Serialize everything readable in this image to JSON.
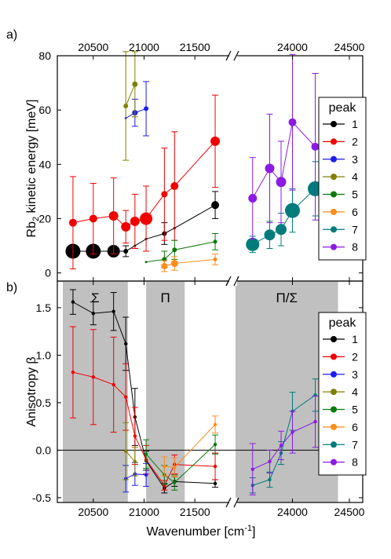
{
  "panels": {
    "a": {
      "letter": "a)"
    },
    "b": {
      "letter": "b)"
    }
  },
  "shared": {
    "xlabel": "Wavenumber [cm",
    "xlabel_sup": "-1",
    "xlabel_end": "]",
    "x_ticks_left": [
      20500,
      21000,
      21500
    ],
    "x_ticks_right": [
      24000,
      24500
    ],
    "x_break": "//",
    "axis_colors": {
      "axis": "#000000",
      "shade": "#c0c0c0"
    }
  },
  "legend": {
    "title": "peak",
    "entries": [
      "1",
      "2",
      "3",
      "4",
      "5",
      "6",
      "7",
      "8"
    ]
  },
  "series_colors": {
    "1": "#000000",
    "2": "#f20000",
    "3": "#1c1cf2",
    "4": "#808000",
    "5": "#0a7a0a",
    "6": "#ff8c1a",
    "7": "#007b7b",
    "8": "#8b1ae6"
  },
  "chart_data": [
    {
      "type": "scatter",
      "panel": "a",
      "ylabel": "Rb2 kinetic energy [meV]",
      "ylabel_main": "Rb",
      "ylabel_sub": "2",
      "ylabel_rest": " kinetic energy [meV]",
      "xlim_left": [
        20200,
        21800
      ],
      "xlim_right": [
        23500,
        24500
      ],
      "ylim": [
        -3,
        80
      ],
      "y_ticks": [
        0,
        20,
        40,
        60,
        80
      ],
      "series": [
        {
          "name": "1",
          "points": [
            {
              "x": 20300,
              "y": 8,
              "err": 1.5,
              "r": 9.5
            },
            {
              "x": 20500,
              "y": 8,
              "err": 1.5,
              "r": 9.5
            },
            {
              "x": 20700,
              "y": 8,
              "err": 2,
              "r": 8
            },
            {
              "x": 20820,
              "y": 8,
              "err": 2,
              "r": 3
            },
            {
              "x": 20910,
              "y": 10,
              "err": 0,
              "r": 1.5
            },
            {
              "x": 21020,
              "y": 12.5,
              "err": 0,
              "r": 1.5
            },
            {
              "x": 21200,
              "y": 14.5,
              "err": 4,
              "r": 3
            },
            {
              "x": 21300,
              "y": 16.5,
              "err": 0,
              "r": 1.5
            },
            {
              "x": 21700,
              "y": 25,
              "err": 5,
              "r": 5
            }
          ]
        },
        {
          "name": "2",
          "points": [
            {
              "x": 20300,
              "y": 18.5,
              "err": 17,
              "r": 5
            },
            {
              "x": 20500,
              "y": 20,
              "err": 13,
              "r": 5
            },
            {
              "x": 20700,
              "y": 21,
              "err": 14,
              "r": 6
            },
            {
              "x": 20820,
              "y": 17,
              "err": 6,
              "r": 6
            },
            {
              "x": 20910,
              "y": 19,
              "err": 10,
              "r": 6
            },
            {
              "x": 21020,
              "y": 20,
              "err": 12,
              "r": 8
            },
            {
              "x": 21200,
              "y": 29,
              "err": 17,
              "r": 4
            },
            {
              "x": 21300,
              "y": 32,
              "err": 20,
              "r": 5
            },
            {
              "x": 21700,
              "y": 48.5,
              "err": 17,
              "r": 6
            }
          ]
        },
        {
          "name": "3",
          "points": [
            {
              "x": 20820,
              "y": 57,
              "err": 0,
              "r": 1.5
            },
            {
              "x": 20910,
              "y": 59,
              "err": 5,
              "r": 3.5
            },
            {
              "x": 21020,
              "y": 60.5,
              "err": 10,
              "r": 3
            }
          ]
        },
        {
          "name": "4",
          "points": [
            {
              "x": 20820,
              "y": 61.5,
              "err": 20,
              "r": 3
            },
            {
              "x": 20910,
              "y": 69.5,
              "err": 12,
              "r": 3.5
            }
          ]
        },
        {
          "name": "5",
          "points": [
            {
              "x": 21020,
              "y": 4,
              "err": 0,
              "r": 1.5
            },
            {
              "x": 21200,
              "y": 5,
              "err": 3,
              "r": 3
            },
            {
              "x": 21300,
              "y": 8.5,
              "err": 3.5,
              "r": 3
            },
            {
              "x": 21700,
              "y": 11.5,
              "err": 3,
              "r": 2.5
            }
          ]
        },
        {
          "name": "6",
          "points": [
            {
              "x": 21200,
              "y": 2.5,
              "err": 2,
              "r": 4
            },
            {
              "x": 21300,
              "y": 3.5,
              "err": 2.5,
              "r": 4.5
            },
            {
              "x": 21700,
              "y": 5,
              "err": 2,
              "r": 2.5
            }
          ]
        },
        {
          "name": "7",
          "points": [
            {
              "x": 23650,
              "y": 10.5,
              "err": 3,
              "r": 8.5
            },
            {
              "x": 23800,
              "y": 14,
              "err": 5,
              "r": 7
            },
            {
              "x": 23900,
              "y": 16,
              "err": 6,
              "r": 7
            },
            {
              "x": 24000,
              "y": 23,
              "err": 8,
              "r": 9.5
            },
            {
              "x": 24200,
              "y": 31,
              "err": 10,
              "r": 9.5
            }
          ]
        },
        {
          "name": "8",
          "points": [
            {
              "x": 23650,
              "y": 27.5,
              "err": 15,
              "r": 5.5
            },
            {
              "x": 23800,
              "y": 38.5,
              "err": 20,
              "r": 6
            },
            {
              "x": 23900,
              "y": 33.5,
              "err": 15,
              "r": 6.5
            },
            {
              "x": 24000,
              "y": 55.5,
              "err": 25,
              "r": 5
            },
            {
              "x": 24200,
              "y": 46.5,
              "err": 27,
              "r": 5
            }
          ]
        }
      ]
    },
    {
      "type": "line",
      "panel": "b",
      "ylabel": "Anisotropy β",
      "xlim_left": [
        20200,
        21800
      ],
      "xlim_right": [
        23500,
        24500
      ],
      "ylim": [
        -0.55,
        1.78
      ],
      "y_ticks": [
        -0.5,
        0.0,
        0.5,
        1.0,
        1.5
      ],
      "y_tick_labels": [
        "-0.5",
        "0.0",
        "0.5",
        "1.0",
        "1.5"
      ],
      "zero_line": true,
      "regions": [
        {
          "label": "Σ",
          "from": 20200,
          "to": 20840
        },
        {
          "label": "Π",
          "from": 21020,
          "to": 21400
        },
        {
          "label": "Π/Σ",
          "from": 23500,
          "to": 24400
        }
      ],
      "series": [
        {
          "name": "1",
          "points": [
            {
              "x": 20300,
              "y": 1.56,
              "err": 0.13
            },
            {
              "x": 20500,
              "y": 1.44,
              "err": 0.12
            },
            {
              "x": 20700,
              "y": 1.46,
              "err": 0.2
            },
            {
              "x": 20820,
              "y": 1.12,
              "err": 0.28
            },
            {
              "x": 20910,
              "y": 0.35,
              "err": 0.3
            },
            {
              "x": 21020,
              "y": -0.11,
              "err": 0.1
            },
            {
              "x": 21200,
              "y": -0.4,
              "err": 0.05
            },
            {
              "x": 21300,
              "y": -0.33,
              "err": 0.05
            },
            {
              "x": 21700,
              "y": -0.35,
              "err": 0.04
            }
          ]
        },
        {
          "name": "2",
          "points": [
            {
              "x": 20300,
              "y": 0.82,
              "err": 0.48
            },
            {
              "x": 20500,
              "y": 0.77,
              "err": 0.5
            },
            {
              "x": 20700,
              "y": 0.69,
              "err": 0.5
            },
            {
              "x": 20820,
              "y": 0.56,
              "err": 0.35
            },
            {
              "x": 20910,
              "y": 0.15,
              "err": 0.3
            },
            {
              "x": 21020,
              "y": -0.1,
              "err": 0.15
            },
            {
              "x": 21200,
              "y": -0.37,
              "err": 0.05
            },
            {
              "x": 21300,
              "y": -0.15,
              "err": 0.1
            },
            {
              "x": 21700,
              "y": -0.17,
              "err": 0.14
            }
          ]
        },
        {
          "name": "3",
          "points": [
            {
              "x": 20820,
              "y": -0.3,
              "err": 0.14
            },
            {
              "x": 20910,
              "y": -0.25,
              "err": 0.12
            },
            {
              "x": 21020,
              "y": -0.26,
              "err": 0.12
            }
          ]
        },
        {
          "name": "4",
          "points": [
            {
              "x": 20820,
              "y": -0.01,
              "err": 0.3
            },
            {
              "x": 20910,
              "y": -0.12,
              "err": 0.15
            }
          ]
        },
        {
          "name": "5",
          "points": [
            {
              "x": 21020,
              "y": -0.04,
              "err": 0.15
            },
            {
              "x": 21200,
              "y": -0.26,
              "err": 0.1
            },
            {
              "x": 21300,
              "y": -0.34,
              "err": 0.08
            },
            {
              "x": 21700,
              "y": 0.06,
              "err": 0.1
            }
          ]
        },
        {
          "name": "6",
          "points": [
            {
              "x": 21200,
              "y": -0.17,
              "err": 0.1
            },
            {
              "x": 21300,
              "y": -0.18,
              "err": 0.1
            },
            {
              "x": 21700,
              "y": 0.27,
              "err": 0.09
            }
          ]
        },
        {
          "name": "7",
          "points": [
            {
              "x": 23650,
              "y": -0.37,
              "err": 0.08
            },
            {
              "x": 23800,
              "y": -0.31,
              "err": 0.08
            },
            {
              "x": 23900,
              "y": -0.03,
              "err": 0.12
            },
            {
              "x": 24000,
              "y": 0.41,
              "err": 0.2
            },
            {
              "x": 24200,
              "y": 0.58,
              "err": 0.17
            }
          ]
        },
        {
          "name": "8",
          "points": [
            {
              "x": 23650,
              "y": -0.2,
              "err": 0.27
            },
            {
              "x": 23800,
              "y": -0.12,
              "err": 0.12
            },
            {
              "x": 23900,
              "y": 0.05,
              "err": 0.15
            },
            {
              "x": 24000,
              "y": 0.19,
              "err": 0.22
            },
            {
              "x": 24200,
              "y": 0.3,
              "err": 0.27
            }
          ]
        }
      ]
    }
  ]
}
